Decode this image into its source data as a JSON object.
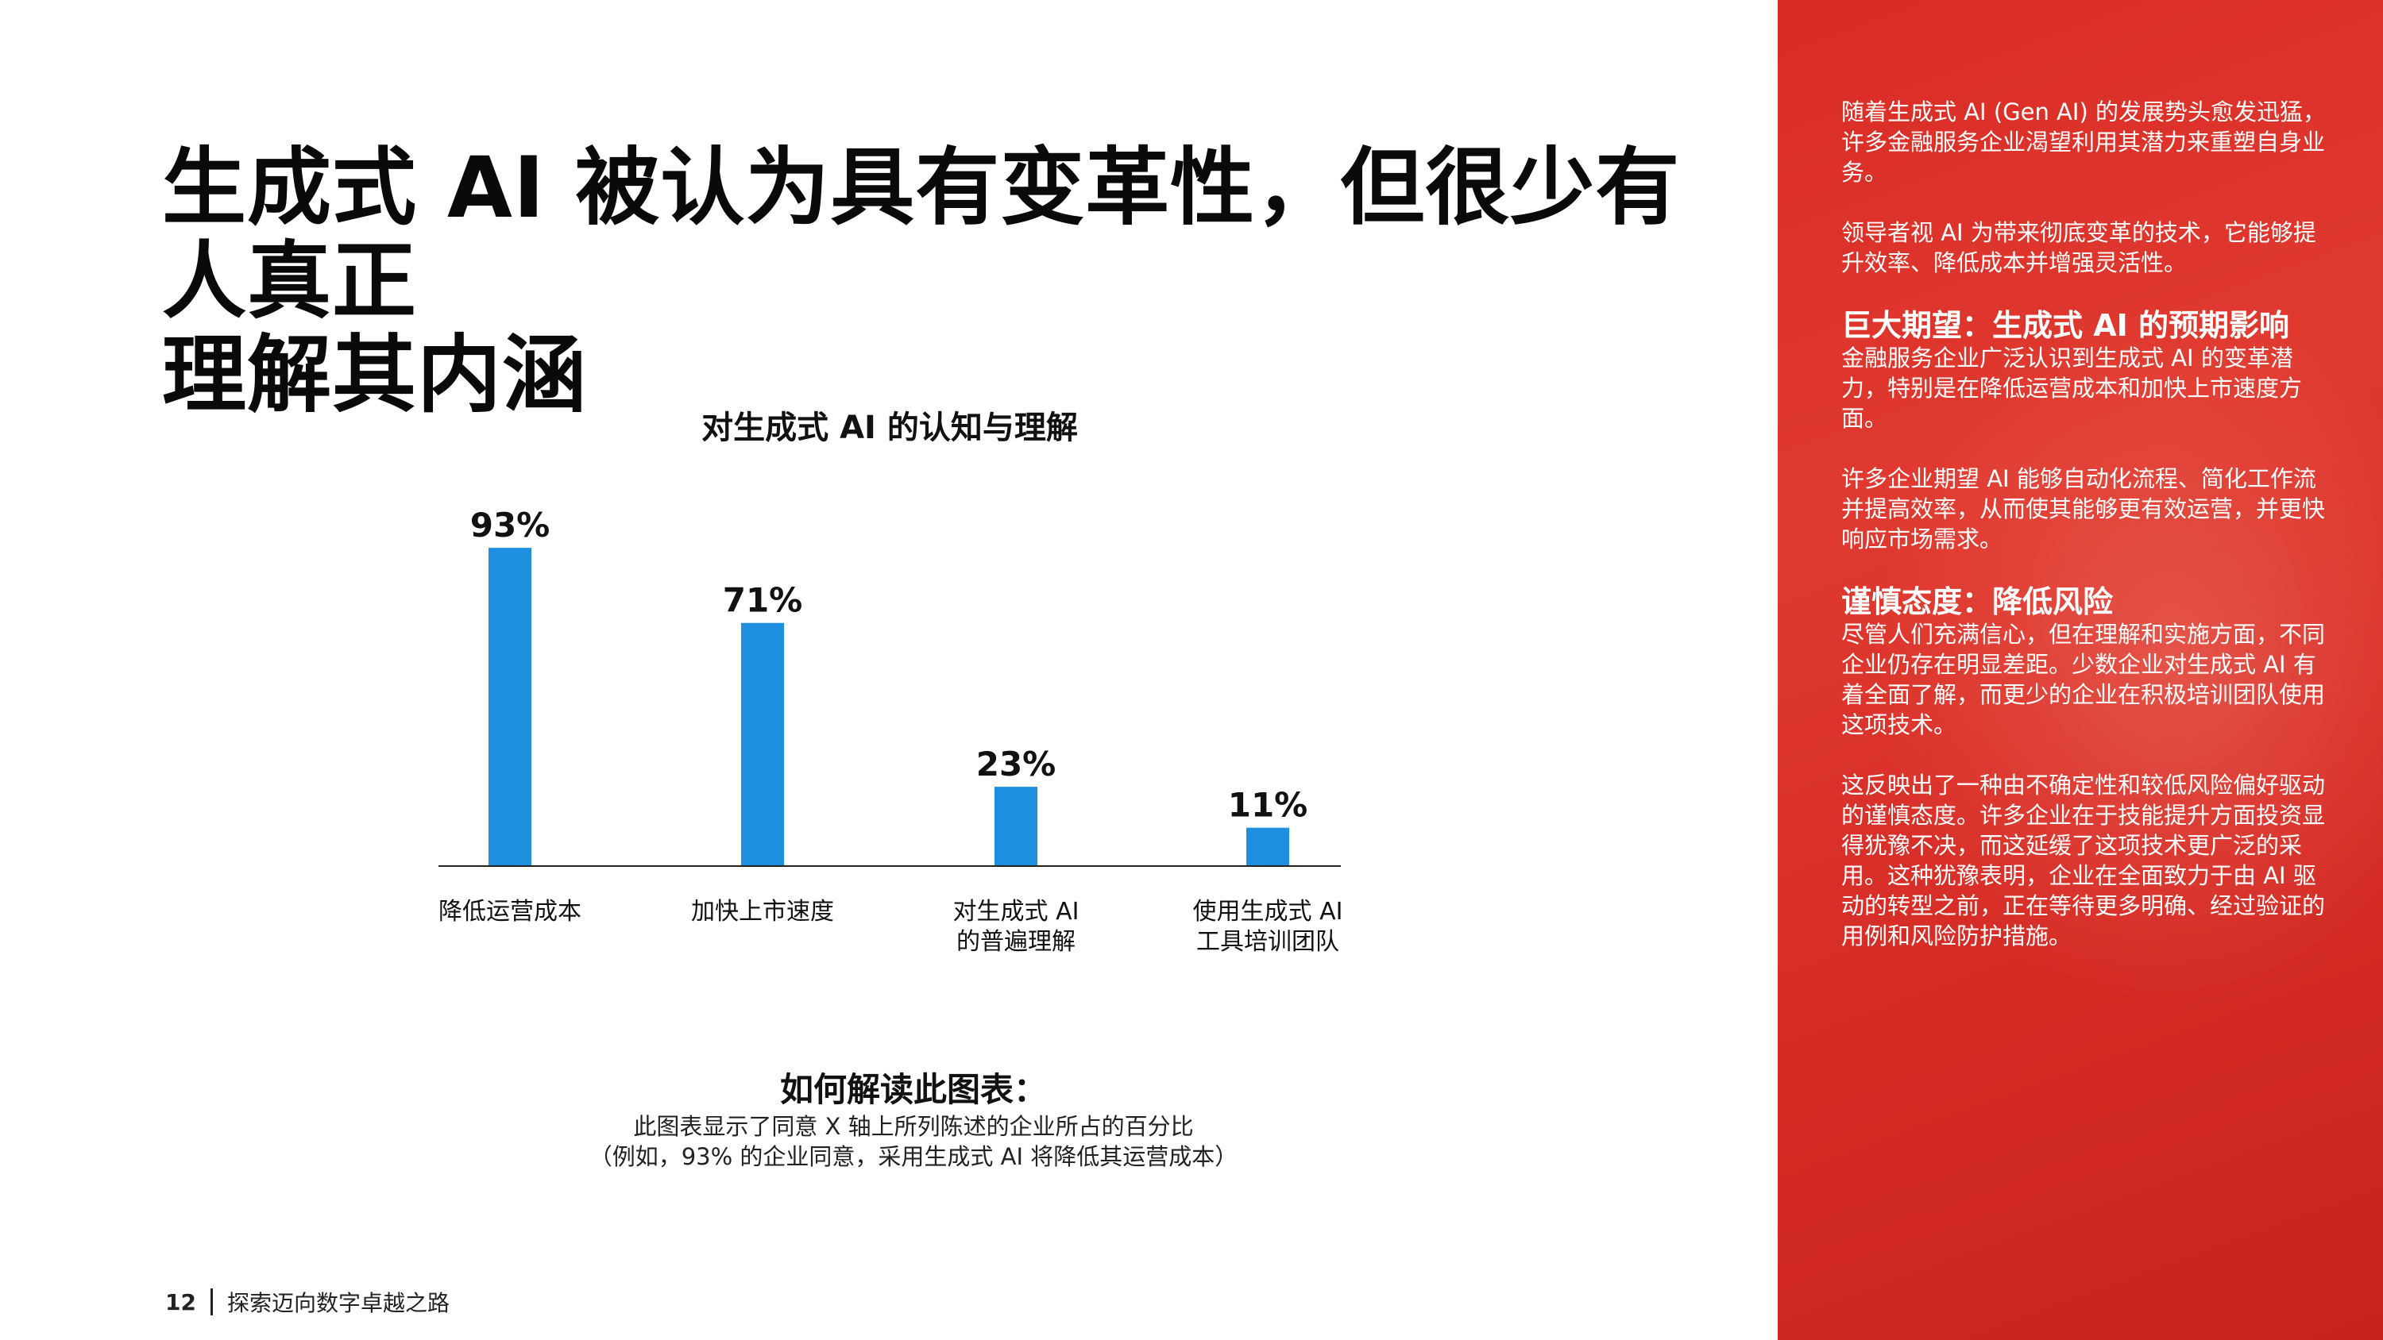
{
  "title_line1": "生成式 AI 被认为具有变革性，但很少有人真正",
  "title_line2": "理解其内涵",
  "chart_data": {
    "type": "bar",
    "title": "对生成式 AI 的认知与理解",
    "categories": [
      [
        "降低运营成本"
      ],
      [
        "加快上市速度"
      ],
      [
        "对生成式 AI",
        "的普遍理解"
      ],
      [
        "使用生成式 AI",
        "工具培训团队"
      ]
    ],
    "values": [
      93,
      71,
      23,
      11
    ],
    "value_labels": [
      "93%",
      "71%",
      "23%",
      "11%"
    ],
    "ylim": [
      0,
      100
    ],
    "bar_color": "#1f8fe0",
    "grid": false
  },
  "howto": {
    "title": "如何解读此图表：",
    "line1": "此图表显示了同意 X 轴上所列陈述的企业所占的百分比",
    "line2": "（例如，93% 的企业同意，采用生成式 AI 将降低其运营成本）"
  },
  "footer": {
    "page": "12",
    "text": "探索迈向数字卓越之路"
  },
  "panel": {
    "bg_color": "#d92b24",
    "intro1": "随着生成式 AI (Gen AI) 的发展势头愈发迅猛，许多金融服务企业渴望利用其潜力来重塑自身业务。",
    "intro2": "领导者视 AI 为带来彻底变革的技术，它能够提升效率、降低成本并增强灵活性。",
    "heading1": "巨大期望：生成式 AI 的预期影响",
    "para1a": "金融服务企业广泛认识到生成式 AI 的变革潜力，特别是在降低运营成本和加快上市速度方面。",
    "para1b": "许多企业期望 AI 能够自动化流程、简化工作流并提高效率，从而使其能够更有效运营，并更快响应市场需求。",
    "heading2": "谨慎态度：降低风险",
    "para2a": "尽管人们充满信心，但在理解和实施方面，不同企业仍存在明显差距。少数企业对生成式 AI 有着全面了解，而更少的企业在积极培训团队使用这项技术。",
    "para2b": "这反映出了一种由不确定性和较低风险偏好驱动的谨慎态度。许多企业在于技能提升方面投资显得犹豫不决，而这延缓了这项技术更广泛的采用。这种犹豫表明，企业在全面致力于由 AI 驱动的转型之前，正在等待更多明确、经过验证的用例和风险防护措施。"
  }
}
